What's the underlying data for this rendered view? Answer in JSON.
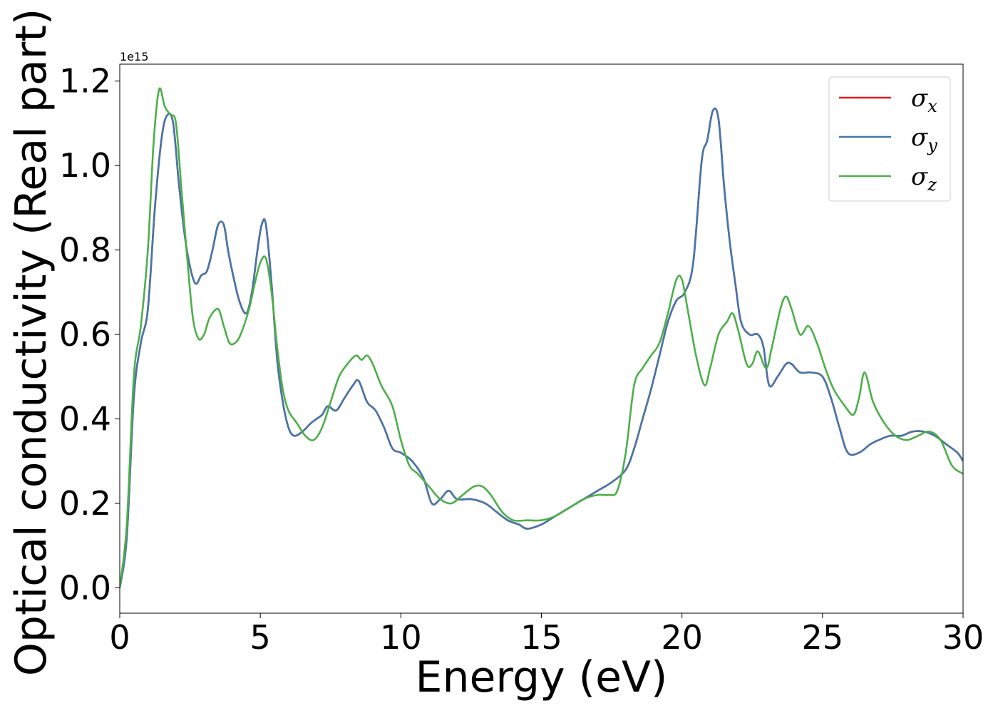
{
  "chart_data": {
    "type": "line",
    "xlabel": "Energy (eV)",
    "ylabel": "Optical conductivity (Real part)",
    "offset_text": "1e15",
    "xlim": [
      0,
      30
    ],
    "ylim": [
      -0.06,
      1.24
    ],
    "xticks": [
      0,
      5,
      10,
      15,
      20,
      25,
      30
    ],
    "xtick_labels": [
      "0",
      "5",
      "10",
      "15",
      "20",
      "25",
      "30"
    ],
    "yticks": [
      0.0,
      0.2,
      0.4,
      0.6,
      0.8,
      1.0,
      1.2
    ],
    "ytick_labels": [
      "0.0",
      "0.2",
      "0.4",
      "0.6",
      "0.8",
      "1.0",
      "1.2"
    ],
    "grid": false,
    "legend_position": "top-right",
    "series": [
      {
        "name": "σ",
        "subscript": "x",
        "color": "#e41a1c",
        "x": [
          0,
          0.25,
          0.5,
          0.75,
          1.0,
          1.25,
          1.5,
          1.7,
          1.9,
          2.1,
          2.3,
          2.5,
          2.7,
          2.9,
          3.1,
          3.3,
          3.5,
          3.7,
          3.85,
          4.0,
          4.25,
          4.5,
          4.7,
          4.9,
          5.05,
          5.2,
          5.4,
          5.6,
          5.8,
          6.0,
          6.2,
          6.5,
          6.8,
          7.0,
          7.2,
          7.4,
          7.7,
          8.0,
          8.3,
          8.5,
          8.8,
          9.1,
          9.4,
          9.7,
          10.0,
          10.4,
          10.8,
          11.1,
          11.4,
          11.7,
          12.0,
          12.5,
          13.0,
          13.4,
          13.8,
          14.2,
          14.5,
          15.0,
          15.5,
          16.0,
          16.5,
          17.0,
          17.5,
          18.0,
          18.3,
          18.6,
          18.9,
          19.2,
          19.5,
          19.8,
          20.1,
          20.4,
          20.7,
          20.9,
          21.1,
          21.3,
          21.5,
          21.7,
          21.9,
          22.1,
          22.4,
          22.7,
          22.9,
          23.1,
          23.4,
          23.7,
          23.9,
          24.2,
          24.6,
          25.0,
          25.3,
          25.6,
          25.9,
          26.3,
          26.7,
          27.0,
          27.4,
          27.8,
          28.2,
          28.6,
          29.0,
          29.4,
          29.8,
          30.0
        ],
        "values": [
          0.0,
          0.12,
          0.45,
          0.58,
          0.66,
          0.9,
          1.07,
          1.12,
          1.1,
          0.96,
          0.84,
          0.76,
          0.72,
          0.74,
          0.75,
          0.8,
          0.86,
          0.86,
          0.8,
          0.75,
          0.68,
          0.65,
          0.7,
          0.8,
          0.86,
          0.86,
          0.72,
          0.54,
          0.44,
          0.38,
          0.36,
          0.37,
          0.39,
          0.4,
          0.41,
          0.43,
          0.42,
          0.45,
          0.48,
          0.49,
          0.44,
          0.42,
          0.38,
          0.33,
          0.32,
          0.3,
          0.26,
          0.2,
          0.21,
          0.23,
          0.21,
          0.21,
          0.2,
          0.18,
          0.16,
          0.15,
          0.14,
          0.15,
          0.17,
          0.19,
          0.21,
          0.23,
          0.25,
          0.28,
          0.33,
          0.4,
          0.47,
          0.55,
          0.63,
          0.68,
          0.7,
          0.77,
          1.01,
          1.06,
          1.13,
          1.11,
          0.95,
          0.82,
          0.72,
          0.63,
          0.6,
          0.6,
          0.57,
          0.48,
          0.5,
          0.53,
          0.53,
          0.51,
          0.51,
          0.5,
          0.45,
          0.38,
          0.32,
          0.32,
          0.34,
          0.35,
          0.36,
          0.36,
          0.37,
          0.37,
          0.36,
          0.34,
          0.32,
          0.3
        ]
      },
      {
        "name": "σ",
        "subscript": "y",
        "color": "#4477aa",
        "x": [
          0,
          0.25,
          0.5,
          0.75,
          1.0,
          1.25,
          1.5,
          1.7,
          1.9,
          2.1,
          2.3,
          2.5,
          2.7,
          2.9,
          3.1,
          3.3,
          3.5,
          3.7,
          3.85,
          4.0,
          4.25,
          4.5,
          4.7,
          4.9,
          5.05,
          5.2,
          5.4,
          5.6,
          5.8,
          6.0,
          6.2,
          6.5,
          6.8,
          7.0,
          7.2,
          7.4,
          7.7,
          8.0,
          8.3,
          8.5,
          8.8,
          9.1,
          9.4,
          9.7,
          10.0,
          10.4,
          10.8,
          11.1,
          11.4,
          11.7,
          12.0,
          12.5,
          13.0,
          13.4,
          13.8,
          14.2,
          14.5,
          15.0,
          15.5,
          16.0,
          16.5,
          17.0,
          17.5,
          18.0,
          18.3,
          18.6,
          18.9,
          19.2,
          19.5,
          19.8,
          20.1,
          20.4,
          20.7,
          20.9,
          21.1,
          21.3,
          21.5,
          21.7,
          21.9,
          22.1,
          22.4,
          22.7,
          22.9,
          23.1,
          23.4,
          23.7,
          23.9,
          24.2,
          24.6,
          25.0,
          25.3,
          25.6,
          25.9,
          26.3,
          26.7,
          27.0,
          27.4,
          27.8,
          28.2,
          28.6,
          29.0,
          29.4,
          29.8,
          30.0
        ],
        "values": [
          0.0,
          0.12,
          0.45,
          0.58,
          0.66,
          0.9,
          1.07,
          1.12,
          1.1,
          0.96,
          0.84,
          0.76,
          0.72,
          0.74,
          0.75,
          0.8,
          0.86,
          0.86,
          0.8,
          0.75,
          0.68,
          0.65,
          0.7,
          0.8,
          0.86,
          0.86,
          0.72,
          0.54,
          0.44,
          0.38,
          0.36,
          0.37,
          0.39,
          0.4,
          0.41,
          0.43,
          0.42,
          0.45,
          0.48,
          0.49,
          0.44,
          0.42,
          0.38,
          0.33,
          0.32,
          0.3,
          0.26,
          0.2,
          0.21,
          0.23,
          0.21,
          0.21,
          0.2,
          0.18,
          0.16,
          0.15,
          0.14,
          0.15,
          0.17,
          0.19,
          0.21,
          0.23,
          0.25,
          0.28,
          0.33,
          0.4,
          0.47,
          0.55,
          0.63,
          0.68,
          0.7,
          0.77,
          1.01,
          1.06,
          1.13,
          1.11,
          0.95,
          0.82,
          0.72,
          0.63,
          0.6,
          0.6,
          0.57,
          0.48,
          0.5,
          0.53,
          0.53,
          0.51,
          0.51,
          0.5,
          0.45,
          0.38,
          0.32,
          0.32,
          0.34,
          0.35,
          0.36,
          0.36,
          0.37,
          0.37,
          0.36,
          0.34,
          0.32,
          0.3
        ]
      },
      {
        "name": "σ",
        "subscript": "z",
        "color": "#4daf4a",
        "x": [
          0,
          0.25,
          0.5,
          0.75,
          1.0,
          1.2,
          1.4,
          1.6,
          1.8,
          2.0,
          2.2,
          2.4,
          2.6,
          2.8,
          3.0,
          3.2,
          3.5,
          3.7,
          3.9,
          4.1,
          4.3,
          4.6,
          4.8,
          5.0,
          5.2,
          5.4,
          5.6,
          5.8,
          6.0,
          6.3,
          6.6,
          6.9,
          7.2,
          7.5,
          7.8,
          8.1,
          8.4,
          8.6,
          8.8,
          9.0,
          9.3,
          9.7,
          10.0,
          10.3,
          10.6,
          11.0,
          11.4,
          11.8,
          12.2,
          12.6,
          12.9,
          13.2,
          13.6,
          14.0,
          14.5,
          15.0,
          15.5,
          16.0,
          16.5,
          17.0,
          17.4,
          17.7,
          18.0,
          18.3,
          18.6,
          18.9,
          19.2,
          19.5,
          19.8,
          20.0,
          20.2,
          20.5,
          20.8,
          21.0,
          21.3,
          21.6,
          21.8,
          22.0,
          22.3,
          22.5,
          22.7,
          23.0,
          23.2,
          23.5,
          23.7,
          23.9,
          24.2,
          24.5,
          24.8,
          25.1,
          25.4,
          25.8,
          26.1,
          26.3,
          26.5,
          26.8,
          27.2,
          27.6,
          28.0,
          28.4,
          28.8,
          29.2,
          29.6,
          30.0
        ],
        "values": [
          0.0,
          0.15,
          0.5,
          0.62,
          0.8,
          1.05,
          1.18,
          1.14,
          1.12,
          1.1,
          0.94,
          0.78,
          0.64,
          0.59,
          0.6,
          0.64,
          0.66,
          0.62,
          0.58,
          0.58,
          0.6,
          0.66,
          0.72,
          0.77,
          0.78,
          0.7,
          0.57,
          0.47,
          0.42,
          0.39,
          0.36,
          0.35,
          0.38,
          0.44,
          0.5,
          0.53,
          0.55,
          0.54,
          0.55,
          0.53,
          0.48,
          0.43,
          0.35,
          0.29,
          0.27,
          0.24,
          0.21,
          0.2,
          0.22,
          0.24,
          0.24,
          0.22,
          0.18,
          0.16,
          0.16,
          0.16,
          0.17,
          0.19,
          0.21,
          0.22,
          0.22,
          0.23,
          0.32,
          0.48,
          0.52,
          0.55,
          0.58,
          0.65,
          0.73,
          0.73,
          0.66,
          0.55,
          0.48,
          0.52,
          0.6,
          0.63,
          0.65,
          0.61,
          0.53,
          0.53,
          0.56,
          0.52,
          0.57,
          0.66,
          0.69,
          0.66,
          0.6,
          0.62,
          0.58,
          0.52,
          0.47,
          0.43,
          0.41,
          0.45,
          0.51,
          0.44,
          0.39,
          0.36,
          0.35,
          0.36,
          0.37,
          0.35,
          0.29,
          0.27
        ]
      }
    ]
  }
}
